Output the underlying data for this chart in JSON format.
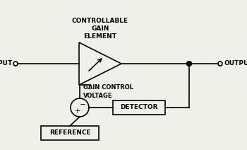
{
  "bg_color": "#f0f0eb",
  "line_color": "#000000",
  "text_color": "#000000",
  "title": "CONTROLLABLE\nGAIN\nELEMENT",
  "label_input": "INPUT",
  "label_output": "OUTPUT",
  "label_gcv": "GAIN CONTROL\nVOLTAGE",
  "label_detector": "DETECTOR",
  "label_reference": "REFERENCE",
  "figsize": [
    3.5,
    2.12
  ],
  "dpi": 100
}
